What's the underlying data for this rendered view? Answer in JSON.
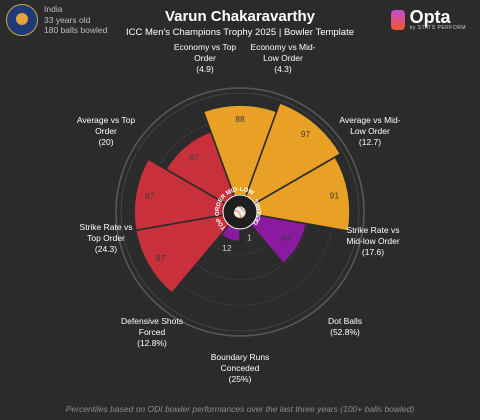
{
  "player": {
    "name": "Varun Chakaravarthy",
    "country": "India",
    "age": "33 years old",
    "balls": "180 balls bowled"
  },
  "subtitle": "ICC Men's Champions Trophy 2025 | Bowler Template",
  "brand": {
    "name": "Opta",
    "sub": "by STATS PERFORM"
  },
  "center_labels": [
    "TOP ORDER",
    "MID-LOW",
    "GENERAL"
  ],
  "footer": "Percentiles based on ODI bowler performances over the last three years (100+ balls bowled)",
  "colors": {
    "top_order": "#c8313b",
    "mid_low": "#e8a125",
    "general": "#8a1a9f",
    "background": "#2b2b2b"
  },
  "chart_data": {
    "type": "polar-bar",
    "categories": [
      {
        "label": "Economy vs Top\nOrder",
        "value_label": "(4.9)",
        "percentile": 67,
        "group": "top_order"
      },
      {
        "label": "Economy vs Mid-\nLow Order",
        "value_label": "(4.3)",
        "percentile": 88,
        "group": "mid_low"
      },
      {
        "label": "Average vs Mid-\nLow Order",
        "value_label": "(12.7)",
        "percentile": 97,
        "group": "mid_low"
      },
      {
        "label": "Strike Rate vs\nMid-low Order",
        "value_label": "(17.6)",
        "percentile": 91,
        "group": "mid_low"
      },
      {
        "label": "Dot Balls",
        "value_label": "(52.8%)",
        "percentile": 49,
        "group": "general"
      },
      {
        "label": "Boundary Runs\nConceded",
        "value_label": "(25%)",
        "percentile": 1,
        "group": "general"
      },
      {
        "label": "Defensive Shots\nForced",
        "value_label": "(12.8%)",
        "percentile": 12,
        "group": "general"
      },
      {
        "label": "Strike Rate vs\nTop Order",
        "value_label": "(24.3)",
        "percentile": 87,
        "group": "top_order"
      },
      {
        "label": "Average vs Top\nOrder",
        "value_label": "(20)",
        "percentile": 87,
        "group": "top_order"
      }
    ],
    "rlim": [
      0,
      100
    ]
  }
}
